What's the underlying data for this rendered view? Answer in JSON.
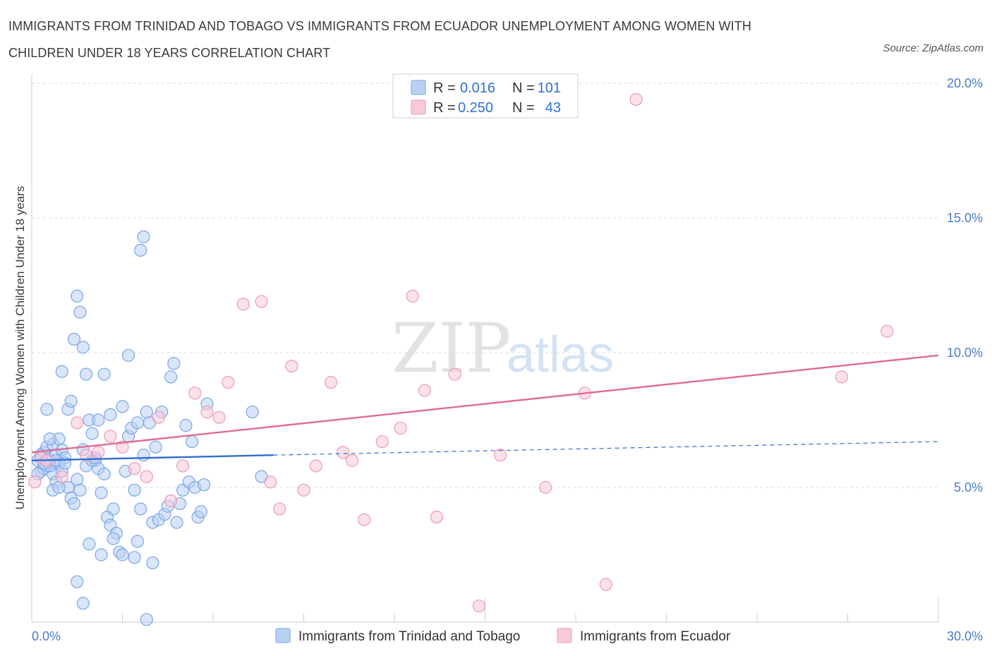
{
  "chart_data": {
    "type": "scatter",
    "title": "IMMIGRANTS FROM TRINIDAD AND TOBAGO VS IMMIGRANTS FROM ECUADOR UNEMPLOYMENT AMONG WOMEN WITH CHILDREN UNDER 18 YEARS CORRELATION CHART",
    "source": "Source: ZipAtlas.com",
    "ylabel": "Unemployment Among Women with Children Under 18 years",
    "xlim": [
      0,
      30
    ],
    "ylim": [
      0,
      20
    ],
    "x_tick_labels": [
      "0.0%",
      "30.0%"
    ],
    "y_ticks": [
      {
        "value": 5,
        "label": "5.0%"
      },
      {
        "value": 10,
        "label": "10.0%"
      },
      {
        "value": 15,
        "label": "15.0%"
      },
      {
        "value": 20,
        "label": "20.0%"
      }
    ],
    "watermark": [
      "ZIP",
      "atlas"
    ],
    "legend": [
      {
        "r_label": "R =",
        "r": "0.016",
        "n_label": "N =",
        "n": "101"
      },
      {
        "r_label": "R =",
        "r": "0.250",
        "n_label": "N =",
        "n": "43"
      }
    ],
    "series": [
      {
        "name": "Immigrants from Trinidad and Tobago",
        "color": "#7aa6e6",
        "fill": "#b9d0f3",
        "line_color": "#2f6fd1",
        "trend": {
          "x0": 0,
          "y0": 6.0,
          "x1": 8,
          "y1": 6.2,
          "dash_x1": 30,
          "dash_y1": 6.7
        },
        "points": [
          [
            0.2,
            6.0
          ],
          [
            0.3,
            5.6
          ],
          [
            0.4,
            6.3
          ],
          [
            0.5,
            5.8
          ],
          [
            0.5,
            6.5
          ],
          [
            0.6,
            6.0
          ],
          [
            0.7,
            5.5
          ],
          [
            0.8,
            6.2
          ],
          [
            0.9,
            5.9
          ],
          [
            1.0,
            6.4
          ],
          [
            0.3,
            6.2
          ],
          [
            0.4,
            5.7
          ],
          [
            0.6,
            5.8
          ],
          [
            0.7,
            6.6
          ],
          [
            0.8,
            5.2
          ],
          [
            0.9,
            6.8
          ],
          [
            1.0,
            5.6
          ],
          [
            1.1,
            6.1
          ],
          [
            1.2,
            5.0
          ],
          [
            1.3,
            4.6
          ],
          [
            1.4,
            4.4
          ],
          [
            1.5,
            5.3
          ],
          [
            1.6,
            4.9
          ],
          [
            1.7,
            6.4
          ],
          [
            1.8,
            5.8
          ],
          [
            1.9,
            7.5
          ],
          [
            2.0,
            7.0
          ],
          [
            2.1,
            6.0
          ],
          [
            2.2,
            5.7
          ],
          [
            2.3,
            4.8
          ],
          [
            2.4,
            5.5
          ],
          [
            2.5,
            3.9
          ],
          [
            2.6,
            3.6
          ],
          [
            2.7,
            4.2
          ],
          [
            2.8,
            3.3
          ],
          [
            2.9,
            2.6
          ],
          [
            3.0,
            2.5
          ],
          [
            3.1,
            5.6
          ],
          [
            3.2,
            6.9
          ],
          [
            3.3,
            7.2
          ],
          [
            3.4,
            4.9
          ],
          [
            3.5,
            3.0
          ],
          [
            3.6,
            4.2
          ],
          [
            3.7,
            6.2
          ],
          [
            3.8,
            7.8
          ],
          [
            3.9,
            7.4
          ],
          [
            4.0,
            3.7
          ],
          [
            4.1,
            6.5
          ],
          [
            4.2,
            3.8
          ],
          [
            4.3,
            7.8
          ],
          [
            4.4,
            4.0
          ],
          [
            4.5,
            4.3
          ],
          [
            4.6,
            9.1
          ],
          [
            4.7,
            9.6
          ],
          [
            4.8,
            3.7
          ],
          [
            4.9,
            4.4
          ],
          [
            5.0,
            4.9
          ],
          [
            5.1,
            7.3
          ],
          [
            5.2,
            5.2
          ],
          [
            5.3,
            6.7
          ],
          [
            5.4,
            5.0
          ],
          [
            5.5,
            3.9
          ],
          [
            5.6,
            4.1
          ],
          [
            5.7,
            5.1
          ],
          [
            5.8,
            8.1
          ],
          [
            1.0,
            9.3
          ],
          [
            1.2,
            7.9
          ],
          [
            1.3,
            8.2
          ],
          [
            1.4,
            10.5
          ],
          [
            1.5,
            12.1
          ],
          [
            1.6,
            11.5
          ],
          [
            1.7,
            10.2
          ],
          [
            1.8,
            9.2
          ],
          [
            2.0,
            6.0
          ],
          [
            2.1,
            6.1
          ],
          [
            2.2,
            7.5
          ],
          [
            2.4,
            9.2
          ],
          [
            2.6,
            7.7
          ],
          [
            3.0,
            8.0
          ],
          [
            3.2,
            9.9
          ],
          [
            3.5,
            7.4
          ],
          [
            3.6,
            13.8
          ],
          [
            3.7,
            14.3
          ],
          [
            1.5,
            1.5
          ],
          [
            1.7,
            0.7
          ],
          [
            2.3,
            2.5
          ],
          [
            3.4,
            2.4
          ],
          [
            3.8,
            0.1
          ],
          [
            4.0,
            2.2
          ],
          [
            7.3,
            7.8
          ],
          [
            7.6,
            5.4
          ],
          [
            0.5,
            7.9
          ],
          [
            0.6,
            6.8
          ],
          [
            0.2,
            5.5
          ],
          [
            0.4,
            5.9
          ],
          [
            0.7,
            4.9
          ],
          [
            0.8,
            6.0
          ],
          [
            1.1,
            5.9
          ],
          [
            1.9,
            2.9
          ],
          [
            2.7,
            3.1
          ],
          [
            0.9,
            5.0
          ]
        ]
      },
      {
        "name": "Immigrants from Ecuador",
        "color": "#ee9ab6",
        "fill": "#f7c9d9",
        "line_color": "#e06b95",
        "trend": {
          "x0": 0,
          "y0": 6.3,
          "x1": 30,
          "y1": 9.9
        },
        "points": [
          [
            0.1,
            5.2
          ],
          [
            0.3,
            6.1
          ],
          [
            0.5,
            6.0
          ],
          [
            1.0,
            5.4
          ],
          [
            1.5,
            7.4
          ],
          [
            1.8,
            6.2
          ],
          [
            2.2,
            6.3
          ],
          [
            2.6,
            6.9
          ],
          [
            3.0,
            6.5
          ],
          [
            3.4,
            5.7
          ],
          [
            3.8,
            5.4
          ],
          [
            4.2,
            7.6
          ],
          [
            4.6,
            4.5
          ],
          [
            5.0,
            5.8
          ],
          [
            5.4,
            8.5
          ],
          [
            5.8,
            7.8
          ],
          [
            6.2,
            7.6
          ],
          [
            6.5,
            8.9
          ],
          [
            7.0,
            11.8
          ],
          [
            7.6,
            11.9
          ],
          [
            7.9,
            5.2
          ],
          [
            8.2,
            4.2
          ],
          [
            8.6,
            9.5
          ],
          [
            9.0,
            4.9
          ],
          [
            9.4,
            5.8
          ],
          [
            9.9,
            8.9
          ],
          [
            10.3,
            6.3
          ],
          [
            10.6,
            6.0
          ],
          [
            11.0,
            3.8
          ],
          [
            11.6,
            6.7
          ],
          [
            12.2,
            7.2
          ],
          [
            12.6,
            12.1
          ],
          [
            13.0,
            8.6
          ],
          [
            13.4,
            3.9
          ],
          [
            14.0,
            9.2
          ],
          [
            14.8,
            0.6
          ],
          [
            15.5,
            6.2
          ],
          [
            17.0,
            5.0
          ],
          [
            18.3,
            8.5
          ],
          [
            19.0,
            1.4
          ],
          [
            20.0,
            19.4
          ],
          [
            26.8,
            9.1
          ],
          [
            28.3,
            10.8
          ]
        ]
      }
    ]
  }
}
